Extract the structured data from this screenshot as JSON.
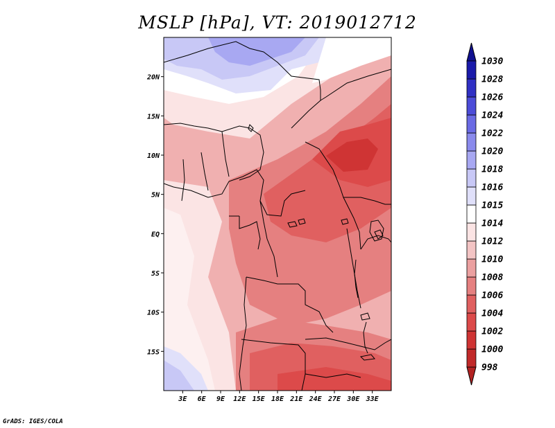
{
  "title": "MSLP [hPa], VT: 2019012712",
  "footer": "GrADS: IGES/COLA",
  "chart_data": {
    "type": "heatmap",
    "variable": "MSLP",
    "units": "hPa",
    "valid_time": "2019012712",
    "lon_range": [
      0,
      36
    ],
    "lat_range": [
      -20,
      25
    ],
    "x_ticks": [
      "3E",
      "6E",
      "9E",
      "12E",
      "15E",
      "18E",
      "21E",
      "24E",
      "27E",
      "30E",
      "33E"
    ],
    "y_ticks": [
      "20N",
      "15N",
      "10N",
      "5N",
      "EQ",
      "5S",
      "10S",
      "15S"
    ],
    "colorbar": {
      "labels": [
        "998",
        "1000",
        "1002",
        "1004",
        "1006",
        "1008",
        "1010",
        "1012",
        "1014",
        "1015",
        "1016",
        "1018",
        "1020",
        "1022",
        "1024",
        "1026",
        "1028",
        "1030"
      ],
      "colors": [
        "#b22222",
        "#c12a2a",
        "#cf3434",
        "#dc4a4a",
        "#e06060",
        "#e58080",
        "#eba0a0",
        "#f3c4c4",
        "#fbe4e4",
        "#ffffff",
        "#e0e0fa",
        "#c8c8f6",
        "#a8a8f2",
        "#8a8aec",
        "#6a6ae4",
        "#4c4cd8",
        "#3030c4",
        "#1a1aaa",
        "#101090"
      ],
      "extend": "both",
      "orientation": "vertical"
    }
  }
}
